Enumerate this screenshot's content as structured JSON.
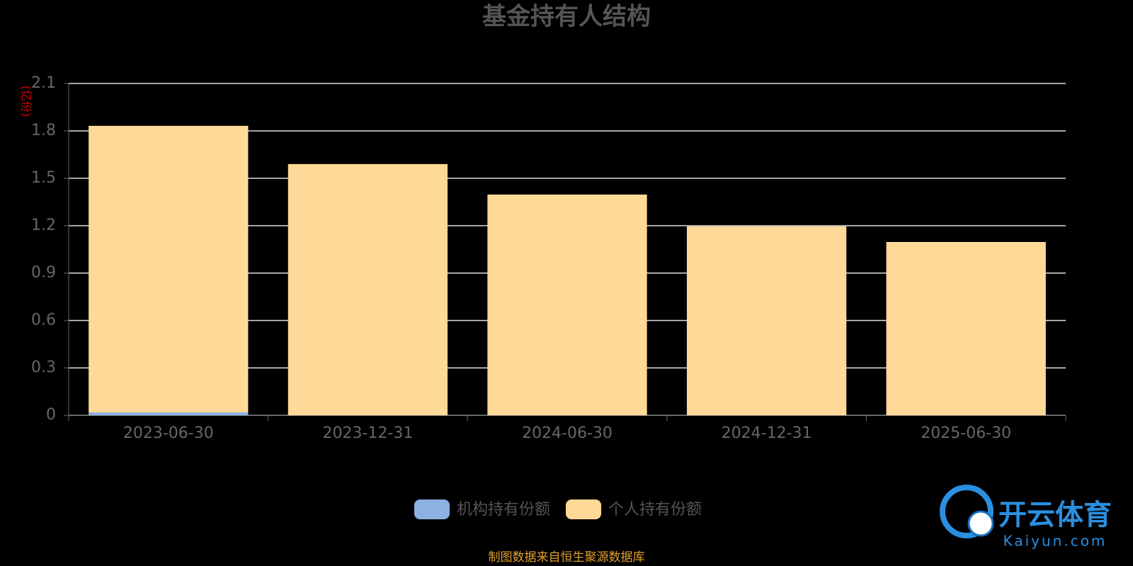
{
  "chart_data": {
    "type": "stacked-bar",
    "title": "基金持有人结构",
    "y_label": "(亿份)",
    "categories": [
      "2023-06-30",
      "2023-12-31",
      "2024-06-30",
      "2024-12-31",
      "2025-06-30"
    ],
    "series": [
      {
        "name": "机构持有份额",
        "color": "#8eb1e3",
        "values": [
          0.018,
          0,
          0,
          0,
          0
        ]
      },
      {
        "name": "个人持有份额",
        "color": "#ffd997",
        "values": [
          1.814,
          1.59,
          1.397,
          1.196,
          1.097
        ]
      }
    ],
    "ylim": [
      0,
      2.1
    ],
    "yticks": [
      0,
      0.3,
      0.6,
      0.9,
      1.2,
      1.5,
      1.8,
      2.1
    ],
    "grid": true,
    "source": "制图数据来自恒生聚源数据库"
  },
  "watermark": {
    "brand": "开云体育",
    "site": "Kaiyun.com"
  }
}
